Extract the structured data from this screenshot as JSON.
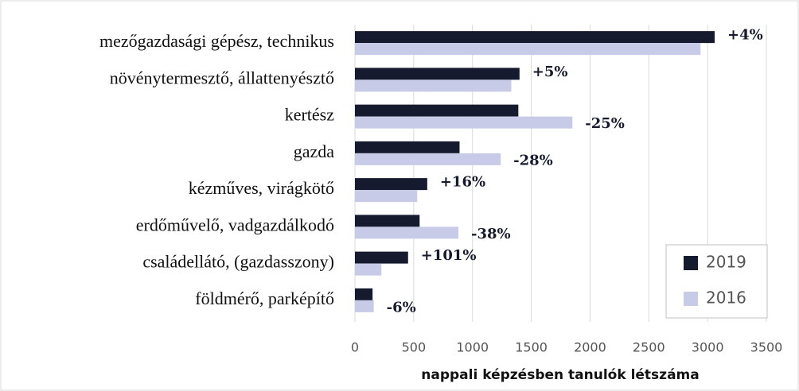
{
  "chart_data": {
    "type": "hbar",
    "xlabel": "nappali képzésben tanulók létszáma",
    "categories": [
      "mezőgazdasági gépész, technikus",
      "növénytermesztő, állattenyésztő",
      "kertész",
      "gazda",
      "kézműves, virágkötő",
      "erdőművelő, vadgazdálkodó",
      "családellátó, (gazdasszony)",
      "földmérő, parképítő"
    ],
    "series": [
      {
        "name": "2019",
        "color": "#161a2e",
        "values": [
          3060,
          1400,
          1390,
          890,
          615,
          550,
          452,
          150
        ]
      },
      {
        "name": "2016",
        "color": "#c8cbe8",
        "values": [
          2940,
          1330,
          1850,
          1240,
          530,
          880,
          225,
          160
        ]
      }
    ],
    "annotations": [
      "+4%",
      "+5%",
      "-25%",
      "-28%",
      "+16%",
      "-38%",
      "+101%",
      "-6%"
    ],
    "xlim": [
      0,
      3500
    ],
    "xticks": [
      0,
      500,
      1000,
      1500,
      2000,
      2500,
      3000,
      3500
    ],
    "grid": true,
    "legend": "lower right"
  }
}
